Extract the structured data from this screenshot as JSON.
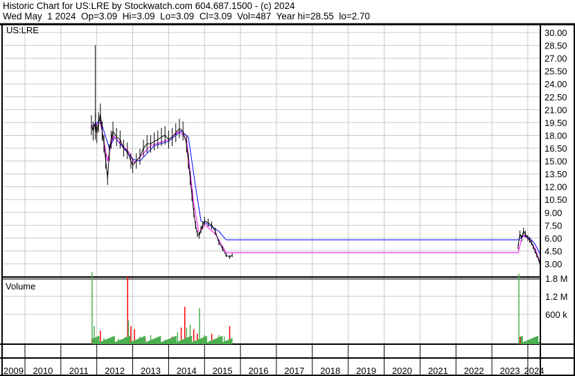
{
  "header": {
    "title": "Historic Chart for US:LRE by Stockwatch.com 604.687.1500 - (c) 2024",
    "quote": "Wed May  1 2024  Op=3.09  Hi=3.09  Lo=3.09  Cl=3.09  Vol=487  Year hi=28.55  lo=2.70"
  },
  "chart_data": [
    {
      "type": "line",
      "title": "US:LRE",
      "ylim": [
        1.5,
        31.5
      ],
      "yticks": [
        "30.00",
        "28.50",
        "27.00",
        "25.50",
        "24.00",
        "22.50",
        "21.00",
        "19.50",
        "18.00",
        "16.50",
        "15.00",
        "13.50",
        "12.00",
        "10.50",
        "9.00",
        "7.50",
        "6.00",
        "4.50",
        "3.00"
      ],
      "xlim": [
        2009,
        2024.35
      ],
      "xticks": [
        "2009",
        "2010",
        "2011",
        "2012",
        "2013",
        "2014",
        "2015",
        "2016",
        "2017",
        "2018",
        "2019",
        "2020",
        "2021",
        "2022",
        "2023",
        "2024"
      ],
      "grid": true,
      "colors": {
        "price": "#000000",
        "ma_short": "#ff00ff",
        "ma_long": "#0000ff"
      },
      "spike": {
        "x": 2011.96,
        "high": 28.5,
        "low": 17.5
      },
      "price": [
        [
          2011.85,
          19.2
        ],
        [
          2011.9,
          18.5
        ],
        [
          2011.96,
          19.5
        ],
        [
          2012.0,
          18.2
        ],
        [
          2012.05,
          19.5
        ],
        [
          2012.1,
          20.5
        ],
        [
          2012.15,
          18.5
        ],
        [
          2012.2,
          17
        ],
        [
          2012.25,
          15
        ],
        [
          2012.3,
          13
        ],
        [
          2012.35,
          16
        ],
        [
          2012.4,
          17.5
        ],
        [
          2012.45,
          18.5
        ],
        [
          2012.55,
          17.8
        ],
        [
          2012.65,
          17.5
        ],
        [
          2012.75,
          16.5
        ],
        [
          2012.85,
          16.2
        ],
        [
          2012.95,
          15
        ],
        [
          2013.0,
          14.5
        ],
        [
          2013.1,
          15
        ],
        [
          2013.2,
          15.5
        ],
        [
          2013.3,
          16.5
        ],
        [
          2013.4,
          17
        ],
        [
          2013.5,
          17
        ],
        [
          2013.6,
          17.3
        ],
        [
          2013.7,
          17.5
        ],
        [
          2013.8,
          17.8
        ],
        [
          2013.9,
          18
        ],
        [
          2014.0,
          17.5
        ],
        [
          2014.1,
          17.8
        ],
        [
          2014.2,
          18.3
        ],
        [
          2014.3,
          18.8
        ],
        [
          2014.4,
          18.5
        ],
        [
          2014.5,
          17
        ],
        [
          2014.55,
          15
        ],
        [
          2014.6,
          13
        ],
        [
          2014.65,
          11
        ],
        [
          2014.7,
          9
        ],
        [
          2014.75,
          7.5
        ],
        [
          2014.8,
          6.5
        ],
        [
          2014.85,
          6.3
        ],
        [
          2014.9,
          7
        ],
        [
          2014.95,
          7.5
        ],
        [
          2015.0,
          8
        ],
        [
          2015.1,
          7.8
        ],
        [
          2015.2,
          7.5
        ],
        [
          2015.3,
          6.8
        ],
        [
          2015.4,
          5.5
        ],
        [
          2015.5,
          4.8
        ],
        [
          2015.6,
          4
        ],
        [
          2015.7,
          3.8
        ],
        [
          2015.77,
          4
        ]
      ],
      "price_2023": [
        [
          2023.73,
          5
        ],
        [
          2023.78,
          6.5
        ],
        [
          2023.83,
          6
        ],
        [
          2023.88,
          6.8
        ],
        [
          2023.93,
          6.5
        ],
        [
          2024.0,
          6
        ],
        [
          2024.05,
          5.8
        ],
        [
          2024.1,
          5.5
        ],
        [
          2024.15,
          5
        ],
        [
          2024.2,
          4.5
        ],
        [
          2024.25,
          4
        ],
        [
          2024.3,
          3.5
        ],
        [
          2024.33,
          3.1
        ]
      ],
      "ma_short": [
        [
          2011.85,
          19
        ],
        [
          2012.1,
          19.5
        ],
        [
          2012.3,
          15
        ],
        [
          2012.45,
          18
        ],
        [
          2012.9,
          16
        ],
        [
          2013.05,
          14.8
        ],
        [
          2013.5,
          16.8
        ],
        [
          2014.0,
          17.5
        ],
        [
          2014.3,
          18.5
        ],
        [
          2014.5,
          17.5
        ],
        [
          2014.7,
          10
        ],
        [
          2014.85,
          6.5
        ],
        [
          2015.0,
          7.6
        ],
        [
          2015.3,
          6.5
        ],
        [
          2015.6,
          4.3
        ],
        [
          2015.77,
          4.3
        ],
        [
          2023.73,
          4.3
        ],
        [
          2023.85,
          6.3
        ],
        [
          2024.0,
          6
        ],
        [
          2024.2,
          4.8
        ],
        [
          2024.33,
          3.3
        ]
      ],
      "ma_long": [
        [
          2011.85,
          19
        ],
        [
          2012.1,
          19.8
        ],
        [
          2012.35,
          16.5
        ],
        [
          2012.5,
          17.8
        ],
        [
          2013.0,
          15.2
        ],
        [
          2013.2,
          15
        ],
        [
          2013.6,
          16.8
        ],
        [
          2014.0,
          17.3
        ],
        [
          2014.35,
          18.5
        ],
        [
          2014.55,
          17.8
        ],
        [
          2014.75,
          12
        ],
        [
          2014.9,
          8
        ],
        [
          2015.1,
          7.6
        ],
        [
          2015.4,
          6.8
        ],
        [
          2015.6,
          5.8
        ],
        [
          2015.77,
          5.8
        ],
        [
          2023.73,
          5.8
        ],
        [
          2023.9,
          6.3
        ],
        [
          2024.05,
          6
        ],
        [
          2024.2,
          5.3
        ],
        [
          2024.33,
          4.2
        ]
      ]
    },
    {
      "type": "bar",
      "title": "Volume",
      "ylim": [
        0,
        2400000
      ],
      "yticks": [
        {
          "label": "1.8 M",
          "value": 1800000
        },
        {
          "label": "1.2 M",
          "value": 1200000
        },
        {
          "label": "600 k",
          "value": 600000
        }
      ],
      "colors": {
        "up": "#4caf50",
        "down": "#ff0000"
      },
      "bars": [
        [
          2011.87,
          2400000,
          "up"
        ],
        [
          2011.93,
          600000,
          "up"
        ],
        [
          2012.0,
          180000,
          "down"
        ],
        [
          2012.1,
          450000,
          "down"
        ],
        [
          2012.2,
          200000,
          "up"
        ],
        [
          2012.4,
          150000,
          "down"
        ],
        [
          2012.6,
          180000,
          "up"
        ],
        [
          2012.8,
          250000,
          "up"
        ],
        [
          2012.86,
          2250000,
          "down"
        ],
        [
          2012.88,
          800000,
          "up"
        ],
        [
          2012.95,
          600000,
          "down"
        ],
        [
          2013.05,
          500000,
          "down"
        ],
        [
          2013.2,
          250000,
          "up"
        ],
        [
          2013.35,
          200000,
          "down"
        ],
        [
          2013.5,
          300000,
          "up"
        ],
        [
          2013.7,
          200000,
          "down"
        ],
        [
          2013.9,
          150000,
          "up"
        ],
        [
          2014.1,
          250000,
          "down"
        ],
        [
          2014.25,
          400000,
          "up"
        ],
        [
          2014.35,
          550000,
          "down"
        ],
        [
          2014.45,
          1250000,
          "down"
        ],
        [
          2014.5,
          550000,
          "up"
        ],
        [
          2014.6,
          650000,
          "up"
        ],
        [
          2014.7,
          500000,
          "down"
        ],
        [
          2014.8,
          350000,
          "down"
        ],
        [
          2014.86,
          1200000,
          "up"
        ],
        [
          2015.0,
          300000,
          "up"
        ],
        [
          2015.2,
          350000,
          "down"
        ],
        [
          2015.4,
          300000,
          "up"
        ],
        [
          2015.55,
          250000,
          "up"
        ],
        [
          2015.7,
          600000,
          "down"
        ],
        [
          2023.75,
          2350000,
          "up"
        ],
        [
          2023.8,
          150000,
          "up"
        ],
        [
          2023.9,
          60000,
          "down"
        ],
        [
          2024.05,
          50000,
          "down"
        ],
        [
          2024.2,
          40000,
          "up"
        ],
        [
          2024.3,
          30000,
          "down"
        ]
      ]
    }
  ]
}
